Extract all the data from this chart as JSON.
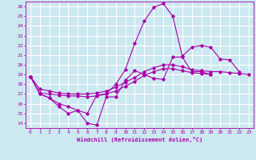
{
  "xlabel": "Windchill (Refroidissement éolien,°C)",
  "background_color": "#cce8f0",
  "grid_color": "#ffffff",
  "line_color": "#aa00aa",
  "xlim": [
    -0.5,
    23.5
  ],
  "ylim": [
    13.5,
    26.5
  ],
  "yticks": [
    14,
    15,
    16,
    17,
    18,
    19,
    20,
    21,
    22,
    23,
    24,
    25,
    26
  ],
  "xticks": [
    0,
    1,
    2,
    3,
    4,
    5,
    6,
    7,
    8,
    9,
    10,
    11,
    12,
    13,
    14,
    15,
    16,
    17,
    18,
    19,
    20,
    21,
    22,
    23
  ],
  "series": [
    [
      18.8,
      17.0,
      16.6,
      15.7,
      15.0,
      15.3,
      14.0,
      13.8,
      16.7,
      16.7,
      18.4,
      19.4,
      19.0,
      18.6,
      18.5,
      20.8,
      20.8,
      19.3,
      19.3,
      19.0
    ],
    [
      18.8,
      17.0,
      16.6,
      16.0,
      15.7,
      15.3,
      15.0,
      16.9,
      17.0,
      18.0,
      19.5,
      22.2,
      24.5,
      25.9,
      26.3,
      25.0,
      20.9,
      21.8,
      22.0,
      21.8,
      20.6,
      20.5,
      19.3
    ],
    [
      18.8,
      17.5,
      17.3,
      17.1,
      17.0,
      17.0,
      17.0,
      17.1,
      17.3,
      17.7,
      18.2,
      18.7,
      19.3,
      19.7,
      20.0,
      20.0,
      19.8,
      19.5,
      19.4,
      19.3,
      19.3,
      19.2,
      19.1,
      19.0
    ],
    [
      18.8,
      17.1,
      17.0,
      16.9,
      16.8,
      16.8,
      16.7,
      16.8,
      17.0,
      17.3,
      17.8,
      18.3,
      18.9,
      19.3,
      19.6,
      19.6,
      19.4,
      19.2,
      19.1,
      19.0
    ]
  ],
  "series_x": [
    [
      0,
      1,
      2,
      3,
      4,
      5,
      6,
      7,
      8,
      9,
      10,
      11,
      12,
      13,
      14,
      15,
      16,
      17,
      18,
      19
    ],
    [
      0,
      1,
      2,
      3,
      4,
      5,
      6,
      7,
      8,
      9,
      10,
      11,
      12,
      13,
      14,
      15,
      16,
      17,
      18,
      19,
      20,
      21,
      22
    ],
    [
      0,
      1,
      2,
      3,
      4,
      5,
      6,
      7,
      8,
      9,
      10,
      11,
      12,
      13,
      14,
      15,
      16,
      17,
      18,
      19,
      20,
      21,
      22,
      23
    ],
    [
      0,
      1,
      2,
      3,
      4,
      5,
      6,
      7,
      8,
      9,
      10,
      11,
      12,
      13,
      14,
      15,
      16,
      17,
      18,
      19
    ]
  ]
}
